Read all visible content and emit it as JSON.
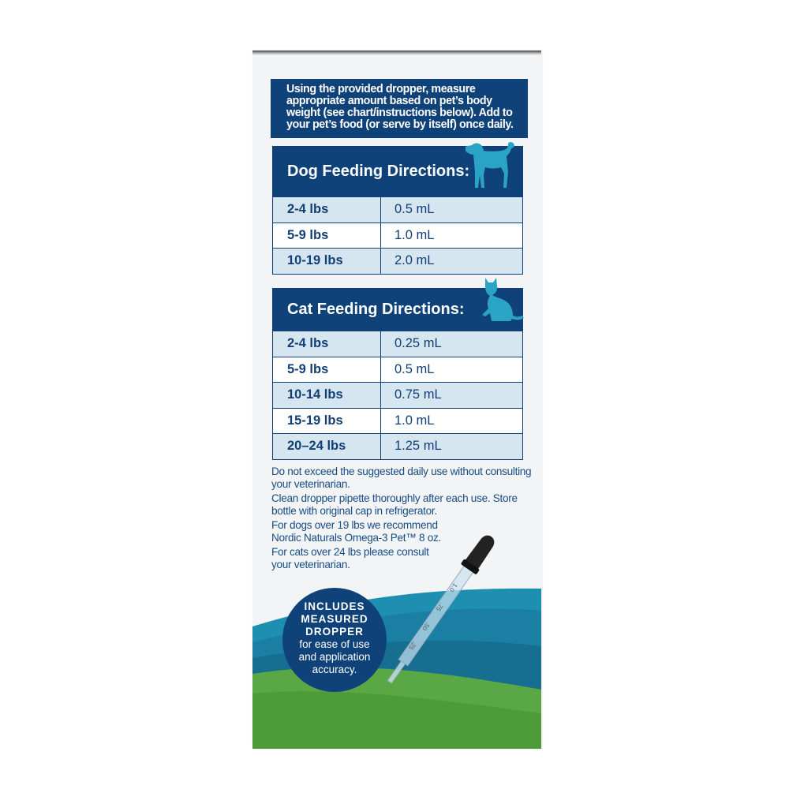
{
  "intro": "Using the provided dropper, measure appropriate amount based on pet’s body weight (see chart/instructions below). Add to your pet’s food (or serve by itself) once daily.",
  "dog": {
    "title": "Dog Feeding Directions:",
    "icon": "dog-icon",
    "rows": [
      [
        "2-4 lbs",
        "0.5 mL"
      ],
      [
        "5-9 lbs",
        "1.0 mL"
      ],
      [
        "10-19 lbs",
        "2.0 mL"
      ]
    ]
  },
  "cat": {
    "title": "Cat Feeding Directions:",
    "icon": "cat-icon",
    "rows": [
      [
        "2-4 lbs",
        "0.25 mL"
      ],
      [
        "5-9 lbs",
        "0.5 mL"
      ],
      [
        "10-14 lbs",
        "0.75 mL"
      ],
      [
        "15-19 lbs",
        "1.0 mL"
      ],
      [
        "20–24 lbs",
        "1.25 mL"
      ]
    ]
  },
  "notes": [
    "Do not exceed the suggested daily use without consulting your veterinarian.",
    "Clean dropper pipette thoroughly after each use. Store bottle with original cap in refrigerator.",
    "For dogs over 19 lbs we recommend Nordic Naturals Omega-3 Pet™ 8 oz.",
    "For cats over 24 lbs please consult your veterinarian."
  ],
  "badge": {
    "line1": "INCLUDES",
    "line2": "MEASURED",
    "line3": "DROPPER",
    "sub": "for ease of use and application accuracy."
  },
  "dropper_marks": [
    "1.0",
    ".75",
    ".50",
    ".25"
  ],
  "colors": {
    "navy": "#0f4279",
    "teal": "#2aa3c4",
    "light_blue": "#d5e6f1",
    "grass": "#4e9b3a"
  }
}
